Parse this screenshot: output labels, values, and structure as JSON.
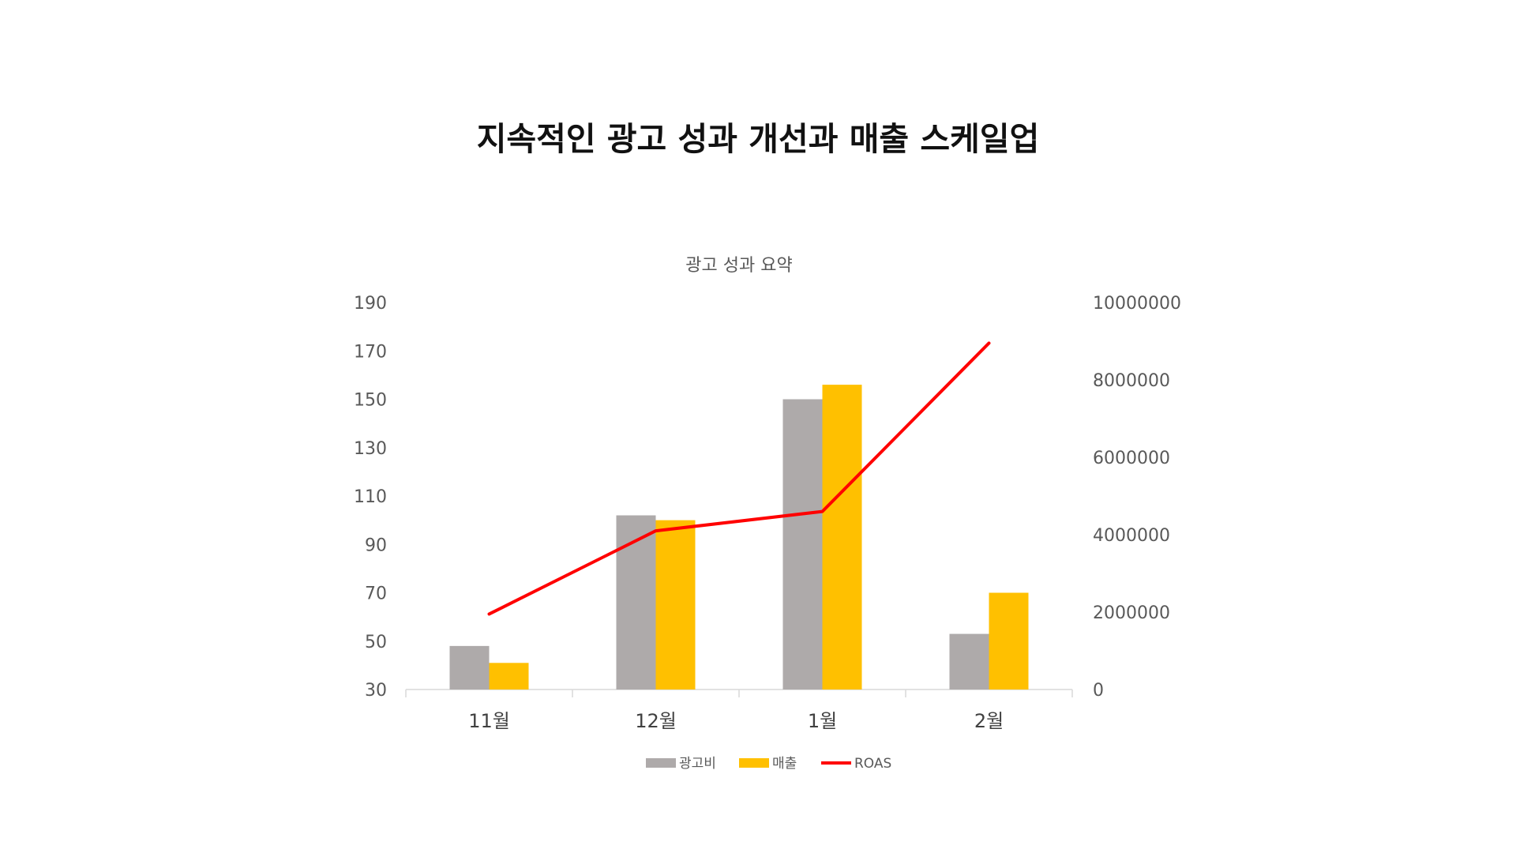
{
  "page": {
    "title": "지속적인 광고 성과 개선과 매출 스케일업"
  },
  "chart_data": {
    "type": "bar",
    "title": "광고 성과 요약",
    "categories": [
      "11월",
      "12월",
      "1월",
      "2월"
    ],
    "series": [
      {
        "name": "광고비",
        "type": "bar",
        "axis": "left",
        "color": "#AEAAAA",
        "values": [
          48,
          102,
          150,
          53
        ]
      },
      {
        "name": "매출",
        "type": "bar",
        "axis": "left",
        "color": "#FFC000",
        "values": [
          41,
          100,
          156,
          70
        ]
      },
      {
        "name": "ROAS",
        "type": "line",
        "axis": "right",
        "color": "#FF0000",
        "values": [
          1950000,
          4100000,
          4600000,
          8950000
        ]
      }
    ],
    "y_left": {
      "min": 30,
      "max": 190,
      "ticks": [
        30,
        50,
        70,
        90,
        110,
        130,
        150,
        170,
        190
      ]
    },
    "y_right": {
      "min": 0,
      "max": 10000000,
      "ticks": [
        0,
        2000000,
        4000000,
        6000000,
        8000000,
        10000000
      ]
    },
    "grid": false,
    "legend": "bottom"
  }
}
